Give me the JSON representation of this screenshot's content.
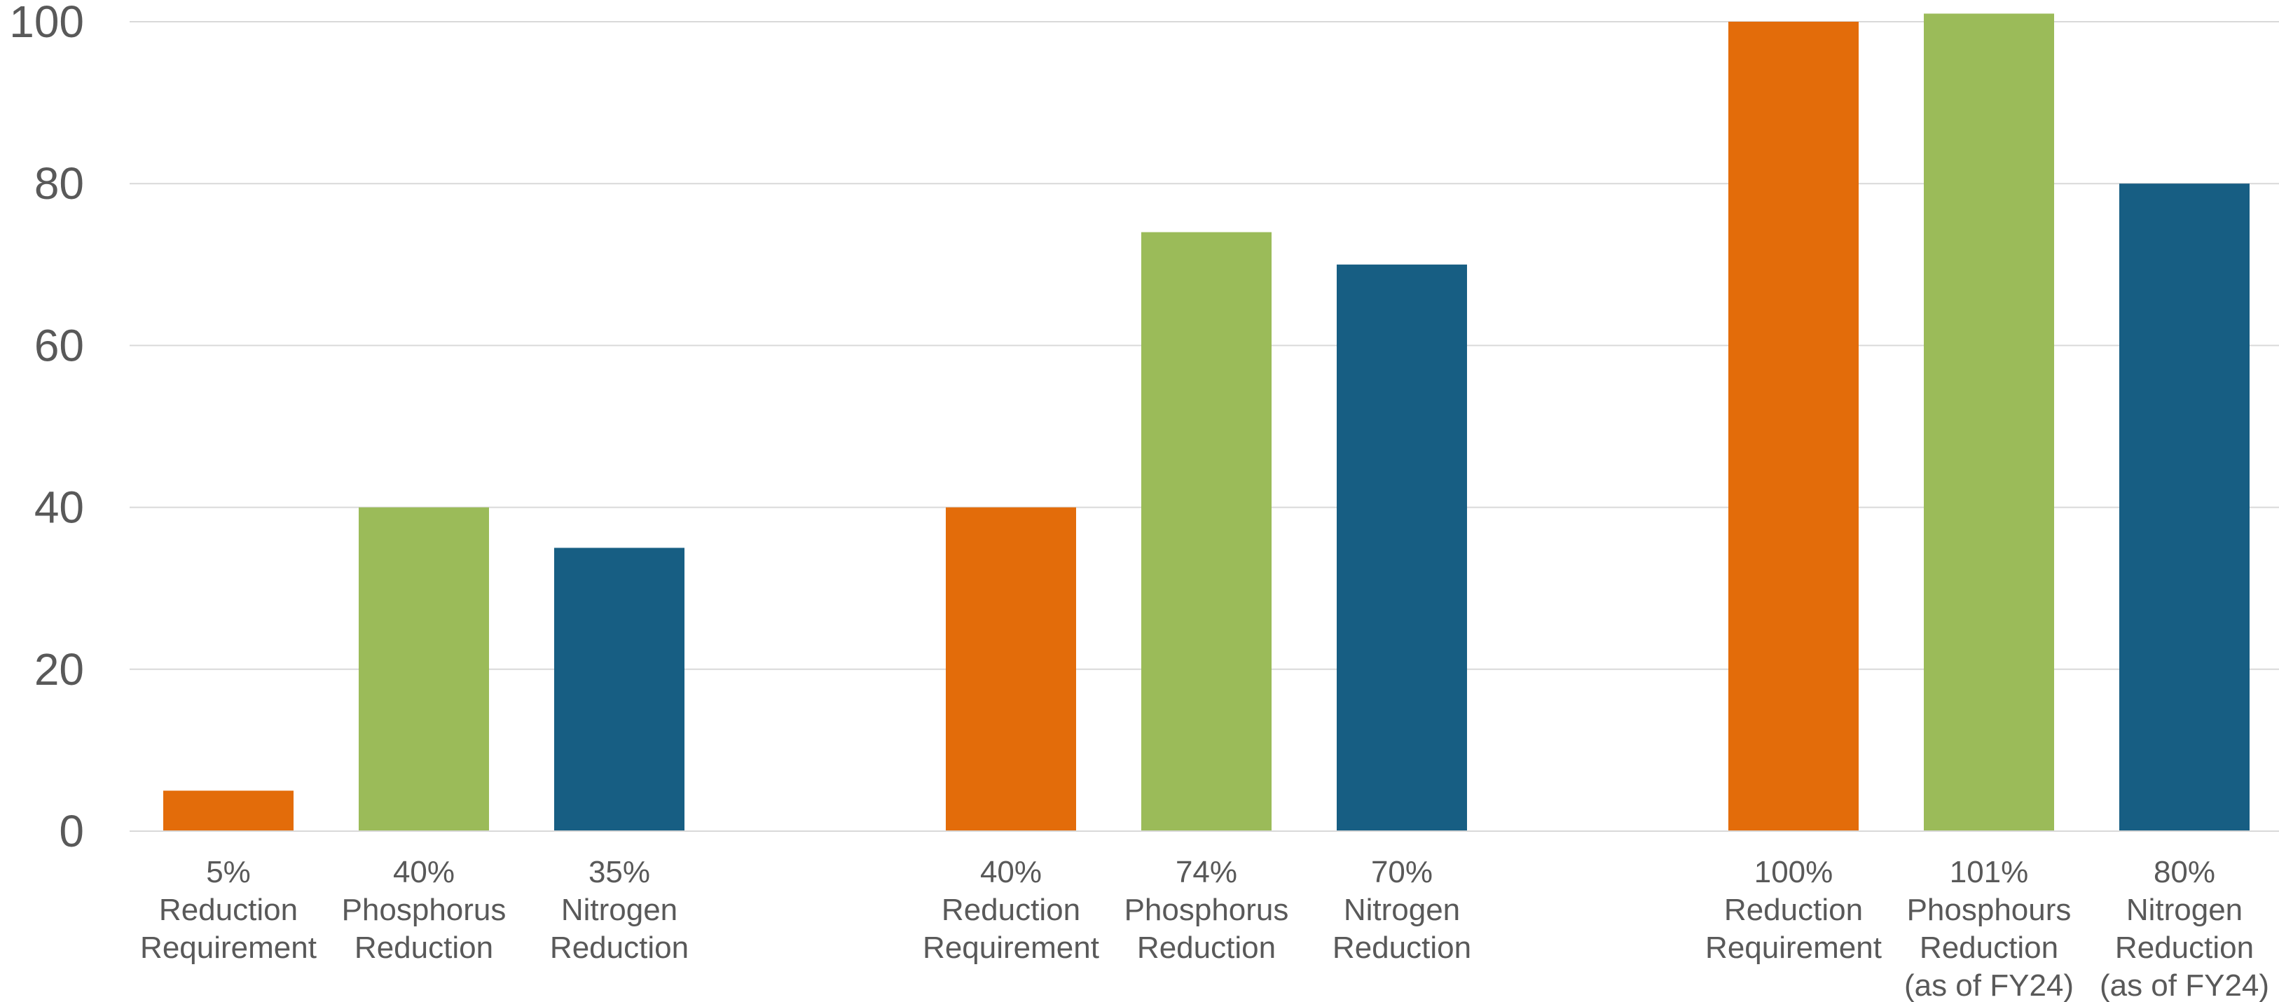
{
  "chart_data": {
    "type": "bar",
    "ylim": [
      0,
      100
    ],
    "yticks": [
      0,
      20,
      40,
      60,
      80,
      100
    ],
    "grid": true,
    "legend": "none",
    "colors": {
      "orange": "#E36C0A",
      "green": "#9BBB59",
      "blue": "#175E83"
    },
    "groups": [
      {
        "bars": [
          {
            "label": [
              "5%",
              "Reduction",
              "Requirement"
            ],
            "value": 5,
            "color": "orange"
          },
          {
            "label": [
              "40%",
              "Phosphorus",
              "Reduction"
            ],
            "value": 40,
            "color": "green"
          },
          {
            "label": [
              "35%",
              "Nitrogen",
              "Reduction"
            ],
            "value": 35,
            "color": "blue"
          }
        ]
      },
      {
        "bars": [
          {
            "label": [
              "40%",
              "Reduction",
              "Requirement"
            ],
            "value": 40,
            "color": "orange"
          },
          {
            "label": [
              "74%",
              "Phosphorus",
              "Reduction"
            ],
            "value": 74,
            "color": "green"
          },
          {
            "label": [
              "70%",
              "Nitrogen",
              "Reduction"
            ],
            "value": 70,
            "color": "blue"
          }
        ]
      },
      {
        "bars": [
          {
            "label": [
              "100%",
              "Reduction",
              "Requirement"
            ],
            "value": 100,
            "color": "orange"
          },
          {
            "label": [
              "101%",
              "Phosphours",
              "Reduction",
              "(as of FY24)"
            ],
            "value": 101,
            "color": "green"
          },
          {
            "label": [
              "80%",
              "Nitrogen",
              "Reduction",
              "(as of FY24)"
            ],
            "value": 80,
            "color": "blue"
          }
        ]
      }
    ]
  }
}
